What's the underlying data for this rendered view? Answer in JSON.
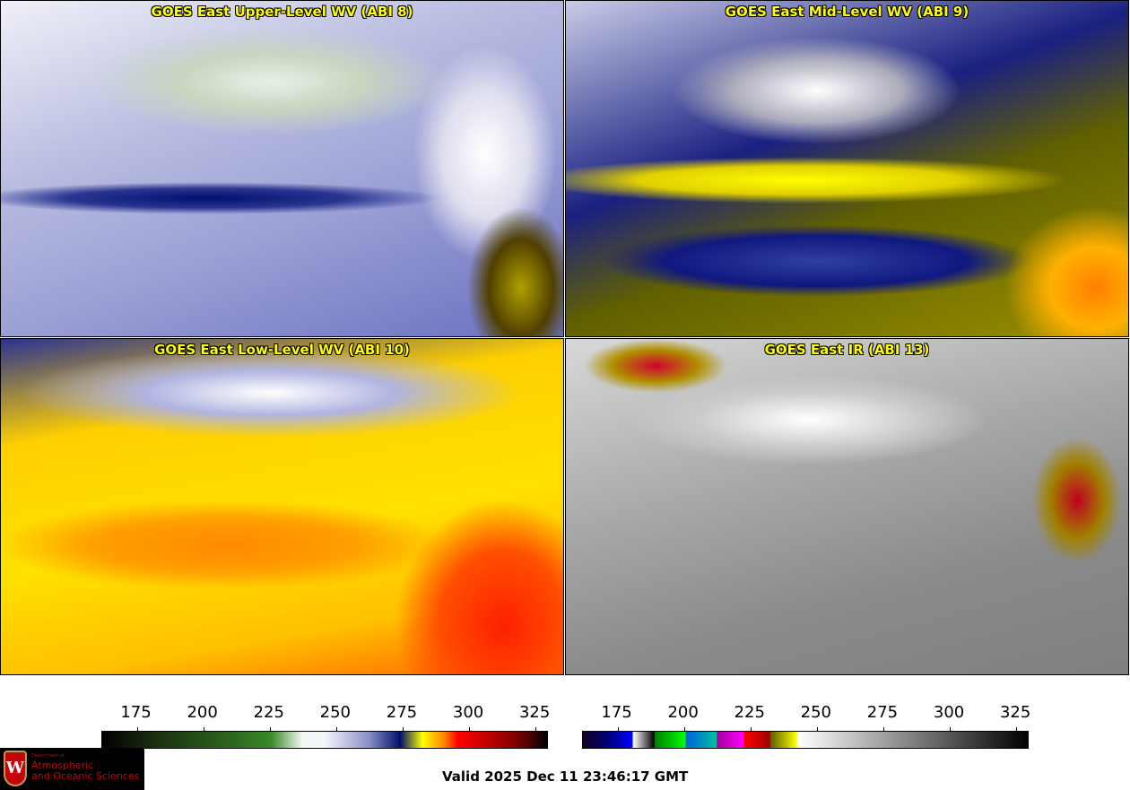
{
  "panels": [
    {
      "title": "GOES East Upper-Level WV (ABI 8)"
    },
    {
      "title": "GOES East Mid-Level WV (ABI 9)"
    },
    {
      "title": "GOES East Low-Level WV (ABI 10)"
    },
    {
      "title": "GOES East IR (ABI 13)"
    }
  ],
  "colorbars": [
    {
      "name": "water-vapor",
      "ticks": [
        "175",
        "200",
        "225",
        "250",
        "275",
        "300",
        "325"
      ],
      "range": [
        162,
        330
      ]
    },
    {
      "name": "infrared",
      "ticks": [
        "175",
        "200",
        "225",
        "250",
        "275",
        "300",
        "325"
      ],
      "range": [
        162,
        330
      ]
    }
  ],
  "logo": {
    "dept": "Department of",
    "line1": "Atmospheric",
    "line2": "and Oceanic Sciences",
    "shield": "W"
  },
  "valid": "Valid 2025 Dec 11 23:46:17 GMT"
}
